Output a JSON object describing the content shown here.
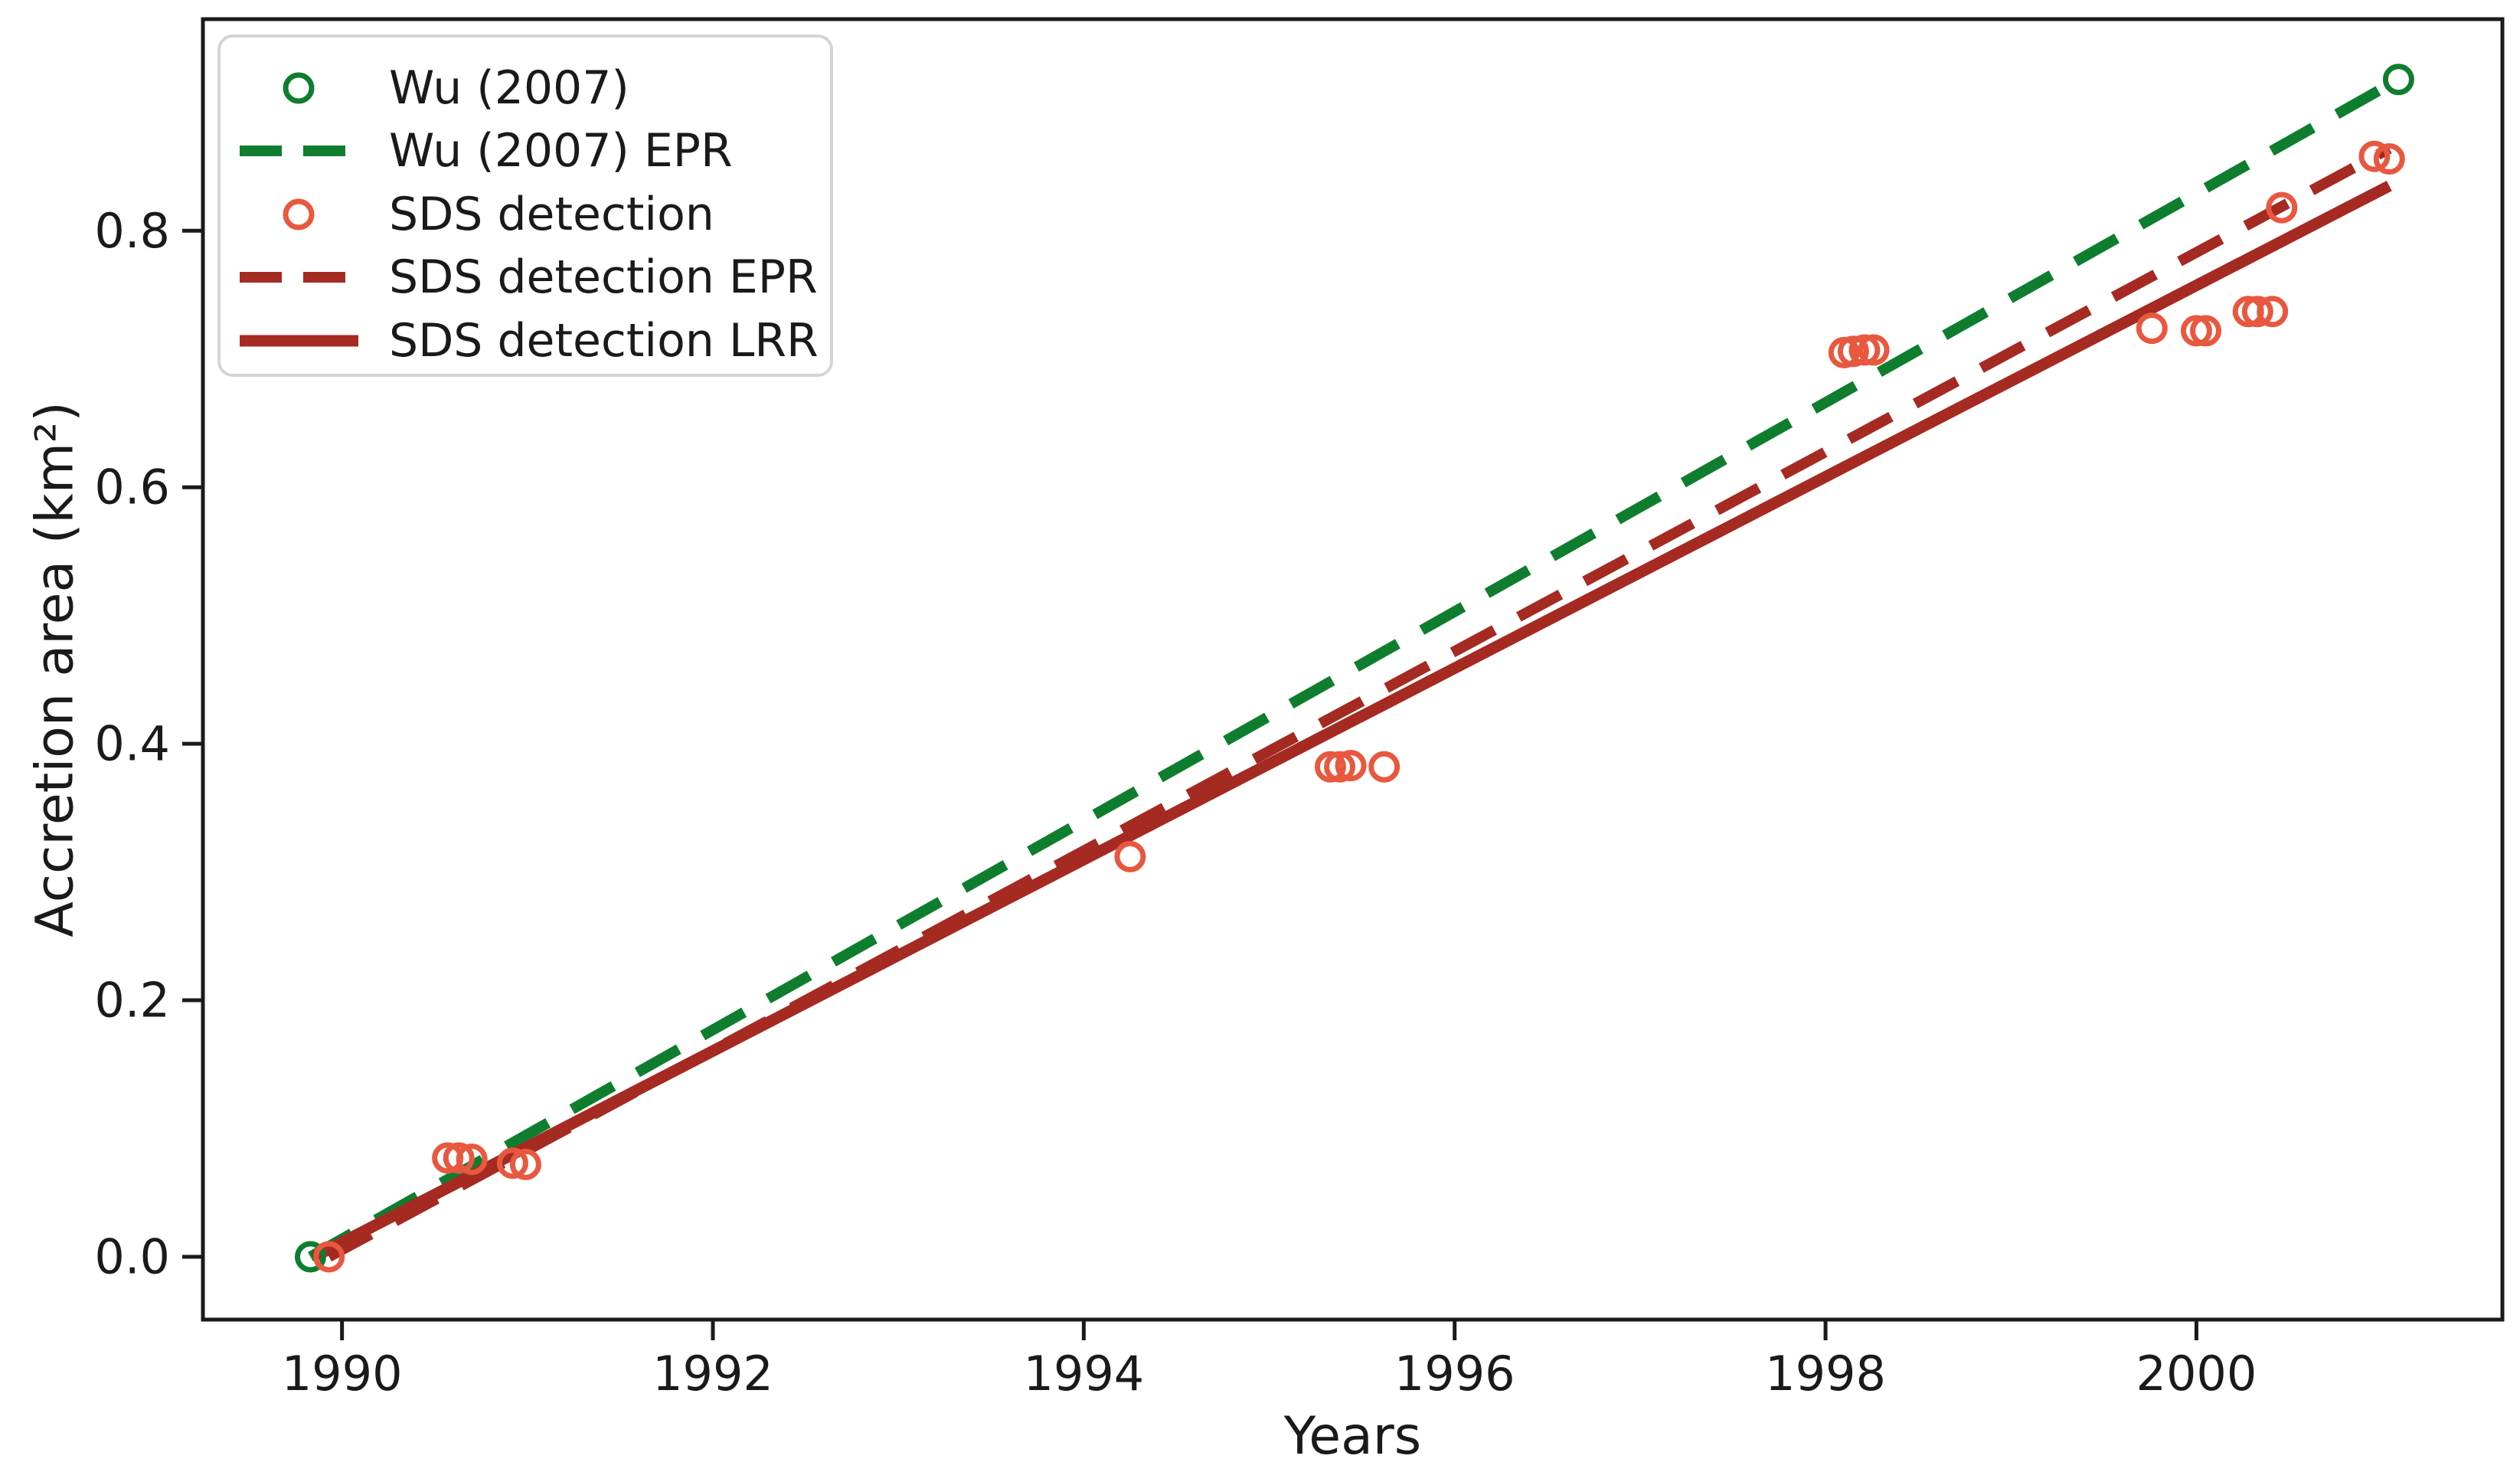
{
  "figure": {
    "background": "#ffffff",
    "frame_color": "#1a1a1a"
  },
  "chart_data": {
    "type": "scatter",
    "title": "",
    "xlabel": "Years",
    "ylabel": "Accretion area (km²)",
    "xlim": [
      1989.25,
      2001.65
    ],
    "ylim": [
      -0.049,
      0.965
    ],
    "x_ticks": [
      "1990",
      "1992",
      "1994",
      "1996",
      "1998",
      "2000"
    ],
    "x_tick_values": [
      1990,
      1992,
      1994,
      1996,
      1998,
      2000
    ],
    "y_ticks": [
      "0.0",
      "0.2",
      "0.4",
      "0.6",
      "0.8"
    ],
    "y_tick_values": [
      0.0,
      0.2,
      0.4,
      0.6,
      0.8
    ],
    "grid": false,
    "legend_position": "upper left",
    "series": [
      {
        "name": "Wu (2007)",
        "type": "scatter",
        "marker": "open-circle",
        "color": "#0e7e2e",
        "points": [
          [
            1989.83,
            0.0
          ],
          [
            2001.09,
            0.918
          ]
        ]
      },
      {
        "name": "Wu (2007) EPR",
        "type": "line",
        "style": "dashed",
        "color": "#0e7e2e",
        "points": [
          [
            1989.83,
            0.0
          ],
          [
            2001.09,
            0.918
          ]
        ]
      },
      {
        "name": "SDS detection",
        "type": "scatter",
        "marker": "open-circle",
        "color": "#e8583f",
        "points": [
          [
            1989.93,
            0.0
          ],
          [
            1990.57,
            0.077
          ],
          [
            1990.63,
            0.077
          ],
          [
            1990.7,
            0.076
          ],
          [
            1990.92,
            0.073
          ],
          [
            1990.99,
            0.072
          ],
          [
            1994.25,
            0.312
          ],
          [
            1995.33,
            0.382
          ],
          [
            1995.38,
            0.382
          ],
          [
            1995.44,
            0.383
          ],
          [
            1995.62,
            0.382
          ],
          [
            1998.1,
            0.705
          ],
          [
            1998.15,
            0.706
          ],
          [
            1998.21,
            0.707
          ],
          [
            1998.26,
            0.707
          ],
          [
            1999.76,
            0.724
          ],
          [
            2000.0,
            0.722
          ],
          [
            2000.05,
            0.722
          ],
          [
            2000.28,
            0.737
          ],
          [
            2000.33,
            0.737
          ],
          [
            2000.41,
            0.737
          ],
          [
            2000.46,
            0.818
          ],
          [
            2000.96,
            0.858
          ],
          [
            2001.04,
            0.856
          ]
        ]
      },
      {
        "name": "SDS detection EPR",
        "type": "line",
        "style": "dashed",
        "color": "#a52a22",
        "points": [
          [
            1989.93,
            0.0
          ],
          [
            2001.04,
            0.864
          ]
        ]
      },
      {
        "name": "SDS detection LRR",
        "type": "line",
        "style": "solid",
        "color": "#a52a22",
        "points": [
          [
            1989.85,
            0.0
          ],
          [
            2001.04,
            0.835
          ]
        ]
      }
    ]
  },
  "legend": {
    "border_color": "#d4d4d4",
    "background": "#ffffff"
  }
}
